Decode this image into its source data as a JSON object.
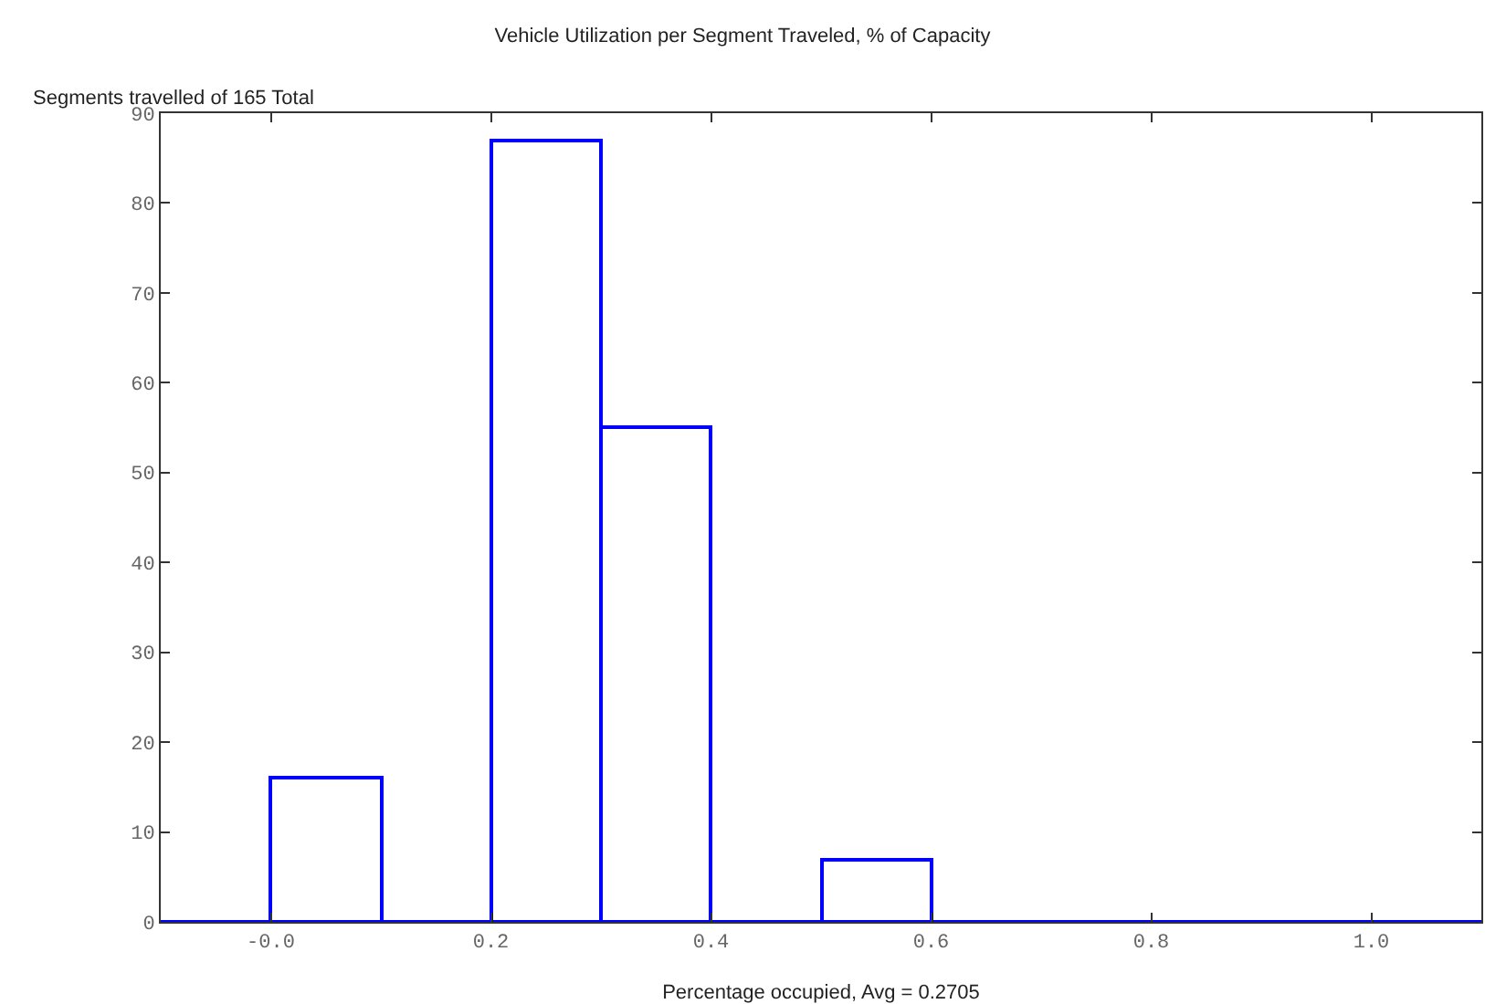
{
  "chart_data": {
    "type": "histogram",
    "title": "Vehicle Utilization per Segment Traveled, % of Capacity",
    "xlabel": "Percentage occupied, Avg = 0.2705",
    "ylabel": "Segments travelled of 165 Total",
    "bins": [
      -0.1,
      0.0,
      0.1,
      0.2,
      0.3,
      0.4,
      0.5,
      0.6,
      0.7,
      0.8,
      0.9,
      1.0,
      1.1
    ],
    "values": [
      0,
      16,
      0,
      87,
      55,
      0,
      7,
      0,
      0,
      0,
      0,
      0
    ],
    "color": "#0000ff",
    "xlim": [
      -0.1,
      1.1
    ],
    "xticks": [
      {
        "value": 0,
        "label": "-0.0"
      },
      {
        "value": 0.2,
        "label": "0.2"
      },
      {
        "value": 0.4,
        "label": "0.4"
      },
      {
        "value": 0.6,
        "label": "0.6"
      },
      {
        "value": 0.8,
        "label": "0.8"
      },
      {
        "value": 1.0,
        "label": "1.0"
      }
    ],
    "ylim": [
      0,
      90
    ],
    "yticks": [
      0,
      10,
      20,
      30,
      40,
      50,
      60,
      70,
      80,
      90
    ],
    "legend": false
  }
}
